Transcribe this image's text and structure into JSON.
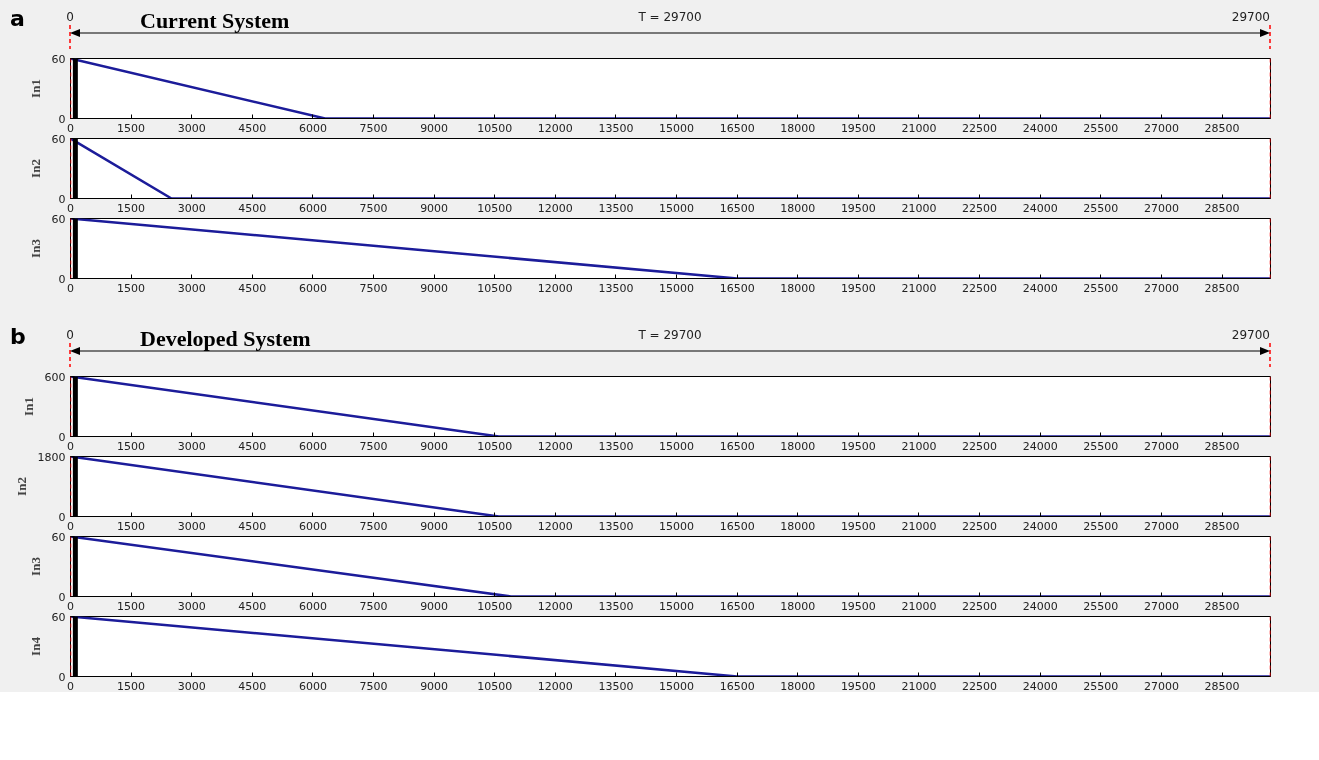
{
  "chart_data": [
    {
      "type": "line",
      "title": "Current System",
      "annotations": [
        "a",
        "T = 29700"
      ],
      "ylabel": "In1",
      "xlim": [
        0,
        29700
      ],
      "xticks": [
        0,
        1500,
        3000,
        4500,
        6000,
        7500,
        9000,
        10500,
        12000,
        13500,
        15000,
        16500,
        18000,
        19500,
        21000,
        22500,
        24000,
        25500,
        27000,
        28500
      ],
      "ylim": [
        0,
        60
      ],
      "yticks": [
        0,
        60
      ],
      "series": [
        {
          "color": "#1c1c9a",
          "x": [
            0,
            6300,
            29700
          ],
          "values": [
            60,
            0,
            0
          ]
        },
        {
          "color": "#000000",
          "x": [
            120,
            120
          ],
          "values": [
            0,
            60
          ]
        }
      ],
      "ref_lines": [
        {
          "axis": "x",
          "value": 0,
          "label": "0",
          "color": "#ff0000",
          "line_style": "dashed"
        },
        {
          "axis": "x",
          "value": 29700,
          "label": "29700",
          "color": "#ff0000",
          "line_style": "dashed"
        }
      ]
    },
    {
      "type": "line",
      "ylabel": "In2",
      "xlim": [
        0,
        29700
      ],
      "xticks": [
        0,
        1500,
        3000,
        4500,
        6000,
        7500,
        9000,
        10500,
        12000,
        13500,
        15000,
        16500,
        18000,
        19500,
        21000,
        22500,
        24000,
        25500,
        27000,
        28500
      ],
      "ylim": [
        0,
        60
      ],
      "yticks": [
        0,
        60
      ],
      "series": [
        {
          "color": "#1c1c9a",
          "x": [
            0,
            2500,
            29700
          ],
          "values": [
            60,
            0,
            0
          ]
        },
        {
          "color": "#000000",
          "x": [
            120,
            120
          ],
          "values": [
            0,
            60
          ]
        }
      ],
      "ref_lines": [
        {
          "axis": "x",
          "value": 0,
          "color": "#ff0000",
          "line_style": "dashed"
        },
        {
          "axis": "x",
          "value": 29700,
          "color": "#ff0000",
          "line_style": "dashed"
        }
      ]
    },
    {
      "type": "line",
      "ylabel": "In3",
      "xlim": [
        0,
        29700
      ],
      "xticks": [
        0,
        1500,
        3000,
        4500,
        6000,
        7500,
        9000,
        10500,
        12000,
        13500,
        15000,
        16500,
        18000,
        19500,
        21000,
        22500,
        24000,
        25500,
        27000,
        28500
      ],
      "ylim": [
        0,
        60
      ],
      "yticks": [
        0,
        60
      ],
      "series": [
        {
          "color": "#1c1c9a",
          "x": [
            0,
            16500,
            29700
          ],
          "values": [
            60,
            0,
            0
          ]
        },
        {
          "color": "#000000",
          "x": [
            120,
            120
          ],
          "values": [
            0,
            60
          ]
        }
      ],
      "ref_lines": [
        {
          "axis": "x",
          "value": 0,
          "color": "#ff0000",
          "line_style": "dashed"
        },
        {
          "axis": "x",
          "value": 29700,
          "color": "#ff0000",
          "line_style": "dashed"
        }
      ]
    },
    {
      "type": "line",
      "title": "Developed System",
      "annotations": [
        "b",
        "T = 29700"
      ],
      "ylabel": "In1",
      "xlim": [
        0,
        29700
      ],
      "xticks": [
        0,
        1500,
        3000,
        4500,
        6000,
        7500,
        9000,
        10500,
        12000,
        13500,
        15000,
        16500,
        18000,
        19500,
        21000,
        22500,
        24000,
        25500,
        27000,
        28500
      ],
      "ylim": [
        0,
        600
      ],
      "yticks": [
        0,
        600
      ],
      "series": [
        {
          "color": "#1c1c9a",
          "x": [
            0,
            10600,
            29700
          ],
          "values": [
            600,
            0,
            0
          ]
        },
        {
          "color": "#000000",
          "x": [
            120,
            120
          ],
          "values": [
            0,
            600
          ]
        }
      ],
      "ref_lines": [
        {
          "axis": "x",
          "value": 0,
          "label": "0",
          "color": "#ff0000",
          "line_style": "dashed"
        },
        {
          "axis": "x",
          "value": 29700,
          "label": "29700",
          "color": "#ff0000",
          "line_style": "dashed"
        }
      ]
    },
    {
      "type": "line",
      "ylabel": "In2",
      "xlim": [
        0,
        29700
      ],
      "xticks": [
        0,
        1500,
        3000,
        4500,
        6000,
        7500,
        9000,
        10500,
        12000,
        13500,
        15000,
        16500,
        18000,
        19500,
        21000,
        22500,
        24000,
        25500,
        27000,
        28500
      ],
      "ylim": [
        0,
        1800
      ],
      "yticks": [
        0,
        1800
      ],
      "series": [
        {
          "color": "#1c1c9a",
          "x": [
            0,
            10600,
            29700
          ],
          "values": [
            1800,
            0,
            0
          ]
        },
        {
          "color": "#000000",
          "x": [
            120,
            120
          ],
          "values": [
            0,
            1800
          ]
        }
      ],
      "ref_lines": [
        {
          "axis": "x",
          "value": 0,
          "color": "#ff0000",
          "line_style": "dashed"
        },
        {
          "axis": "x",
          "value": 29700,
          "color": "#ff0000",
          "line_style": "dashed"
        }
      ]
    },
    {
      "type": "line",
      "ylabel": "In3",
      "xlim": [
        0,
        29700
      ],
      "xticks": [
        0,
        1500,
        3000,
        4500,
        6000,
        7500,
        9000,
        10500,
        12000,
        13500,
        15000,
        16500,
        18000,
        19500,
        21000,
        22500,
        24000,
        25500,
        27000,
        28500
      ],
      "ylim": [
        0,
        60
      ],
      "yticks": [
        0,
        60
      ],
      "series": [
        {
          "color": "#1c1c9a",
          "x": [
            0,
            10900,
            29700
          ],
          "values": [
            60,
            0,
            0
          ]
        },
        {
          "color": "#000000",
          "x": [
            120,
            120
          ],
          "values": [
            0,
            60
          ]
        }
      ],
      "ref_lines": [
        {
          "axis": "x",
          "value": 0,
          "color": "#ff0000",
          "line_style": "dashed"
        },
        {
          "axis": "x",
          "value": 29700,
          "color": "#ff0000",
          "line_style": "dashed"
        }
      ]
    },
    {
      "type": "line",
      "ylabel": "In4",
      "xlim": [
        0,
        29700
      ],
      "xticks": [
        0,
        1500,
        3000,
        4500,
        6000,
        7500,
        9000,
        10500,
        12000,
        13500,
        15000,
        16500,
        18000,
        19500,
        21000,
        22500,
        24000,
        25500,
        27000,
        28500
      ],
      "ylim": [
        0,
        60
      ],
      "yticks": [
        0,
        60
      ],
      "series": [
        {
          "color": "#1c1c9a",
          "x": [
            0,
            16500,
            29700
          ],
          "values": [
            60,
            0,
            0
          ]
        },
        {
          "color": "#000000",
          "x": [
            120,
            120
          ],
          "values": [
            0,
            60
          ]
        }
      ],
      "ref_lines": [
        {
          "axis": "x",
          "value": 0,
          "color": "#ff0000",
          "line_style": "dashed"
        },
        {
          "axis": "x",
          "value": 29700,
          "color": "#ff0000",
          "line_style": "dashed"
        }
      ]
    }
  ]
}
